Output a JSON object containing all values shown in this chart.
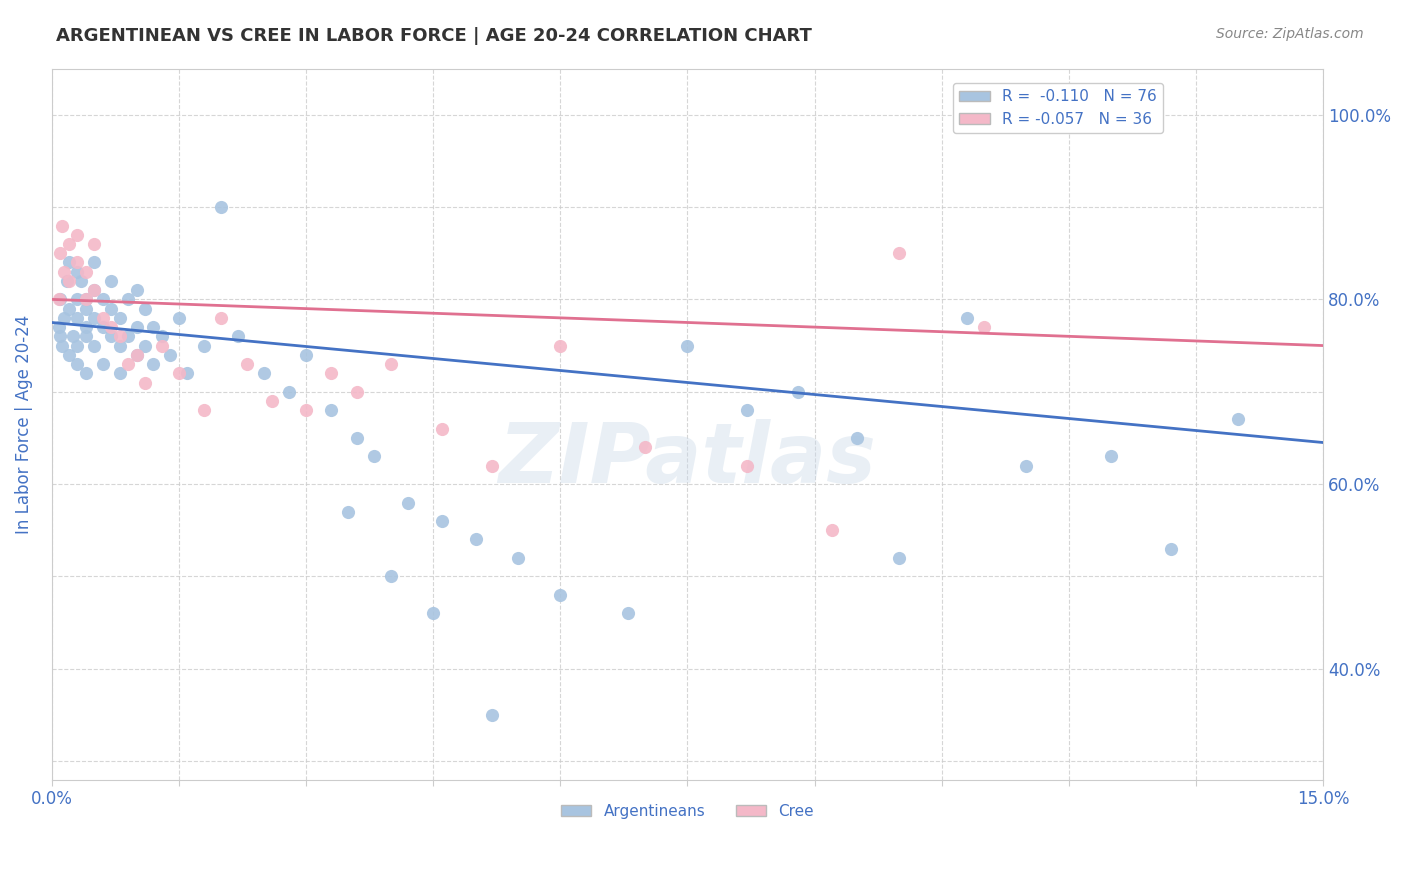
{
  "title": "ARGENTINEAN VS CREE IN LABOR FORCE | AGE 20-24 CORRELATION CHART",
  "source_text": "Source: ZipAtlas.com",
  "ylabel": "In Labor Force | Age 20-24",
  "xlim": [
    0.0,
    0.15
  ],
  "ylim": [
    0.28,
    1.05
  ],
  "xticks": [
    0.0,
    0.015,
    0.03,
    0.045,
    0.06,
    0.075,
    0.09,
    0.105,
    0.12,
    0.135,
    0.15
  ],
  "xtick_labels": [
    "0.0%",
    "",
    "",
    "",
    "",
    "",
    "",
    "",
    "",
    "",
    "15.0%"
  ],
  "yticks": [
    0.3,
    0.4,
    0.5,
    0.6,
    0.7,
    0.8,
    0.9,
    1.0
  ],
  "ytick_labels_right": [
    "",
    "40.0%",
    "",
    "60.0%",
    "",
    "80.0%",
    "",
    "100.0%"
  ],
  "blue_color": "#a8c4e0",
  "pink_color": "#f4b8c8",
  "blue_line_color": "#4472c4",
  "pink_line_color": "#e07090",
  "legend_blue_label": "R =  -0.110   N = 76",
  "legend_pink_label": "R = -0.057   N = 36",
  "watermark": "ZIPatlas",
  "argentineans_x": [
    0.0008,
    0.001,
    0.001,
    0.0012,
    0.0015,
    0.0018,
    0.002,
    0.002,
    0.002,
    0.0025,
    0.003,
    0.003,
    0.003,
    0.003,
    0.003,
    0.0035,
    0.004,
    0.004,
    0.004,
    0.004,
    0.004,
    0.005,
    0.005,
    0.005,
    0.005,
    0.006,
    0.006,
    0.006,
    0.007,
    0.007,
    0.007,
    0.008,
    0.008,
    0.008,
    0.009,
    0.009,
    0.01,
    0.01,
    0.01,
    0.011,
    0.011,
    0.012,
    0.012,
    0.013,
    0.014,
    0.015,
    0.016,
    0.018,
    0.02,
    0.022,
    0.025,
    0.028,
    0.03,
    0.033,
    0.036,
    0.038,
    0.042,
    0.046,
    0.05,
    0.055,
    0.06,
    0.068,
    0.075,
    0.082,
    0.088,
    0.095,
    0.1,
    0.108,
    0.115,
    0.125,
    0.132,
    0.14,
    0.035,
    0.04,
    0.045,
    0.052
  ],
  "argentineans_y": [
    0.77,
    0.76,
    0.8,
    0.75,
    0.78,
    0.82,
    0.74,
    0.79,
    0.84,
    0.76,
    0.8,
    0.83,
    0.75,
    0.78,
    0.73,
    0.82,
    0.77,
    0.79,
    0.72,
    0.76,
    0.8,
    0.75,
    0.78,
    0.81,
    0.84,
    0.77,
    0.8,
    0.73,
    0.76,
    0.79,
    0.82,
    0.75,
    0.78,
    0.72,
    0.76,
    0.8,
    0.74,
    0.77,
    0.81,
    0.75,
    0.79,
    0.73,
    0.77,
    0.76,
    0.74,
    0.78,
    0.72,
    0.75,
    0.9,
    0.76,
    0.72,
    0.7,
    0.74,
    0.68,
    0.65,
    0.63,
    0.58,
    0.56,
    0.54,
    0.52,
    0.48,
    0.46,
    0.75,
    0.68,
    0.7,
    0.65,
    0.52,
    0.78,
    0.62,
    0.63,
    0.53,
    0.67,
    0.57,
    0.5,
    0.46,
    0.35
  ],
  "cree_x": [
    0.0008,
    0.001,
    0.0012,
    0.0015,
    0.002,
    0.002,
    0.003,
    0.003,
    0.004,
    0.004,
    0.005,
    0.005,
    0.006,
    0.007,
    0.008,
    0.009,
    0.01,
    0.011,
    0.013,
    0.015,
    0.018,
    0.02,
    0.023,
    0.026,
    0.03,
    0.033,
    0.036,
    0.04,
    0.046,
    0.052,
    0.06,
    0.07,
    0.082,
    0.092,
    0.1,
    0.11
  ],
  "cree_y": [
    0.8,
    0.85,
    0.88,
    0.83,
    0.82,
    0.86,
    0.84,
    0.87,
    0.8,
    0.83,
    0.81,
    0.86,
    0.78,
    0.77,
    0.76,
    0.73,
    0.74,
    0.71,
    0.75,
    0.72,
    0.68,
    0.78,
    0.73,
    0.69,
    0.68,
    0.72,
    0.7,
    0.73,
    0.66,
    0.62,
    0.75,
    0.64,
    0.62,
    0.55,
    0.85,
    0.77
  ],
  "blue_trend_x": [
    0.0,
    0.15
  ],
  "blue_trend_y": [
    0.775,
    0.645
  ],
  "pink_trend_x": [
    0.0,
    0.15
  ],
  "pink_trend_y": [
    0.8,
    0.75
  ],
  "background_color": "#ffffff",
  "grid_color": "#cccccc",
  "title_color": "#333333",
  "source_color": "#888888",
  "axis_label_color": "#4472c4",
  "tick_color_x": "#4472c4",
  "tick_color_y": "#4472c4"
}
